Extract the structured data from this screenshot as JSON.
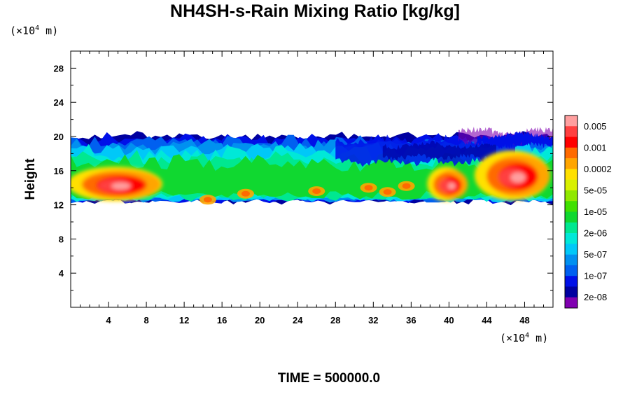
{
  "chart_data": {
    "type": "heatmap",
    "title": "NH4SH-s-Rain Mixing Ratio [kg/kg]",
    "ylabel": "Height",
    "x_unit_base": "(×10",
    "x_unit_exp": "4",
    "x_unit_tail": " m)",
    "y_unit_base": "(×10",
    "y_unit_exp": "4",
    "y_unit_tail": " m)",
    "xlim": [
      0,
      51
    ],
    "ylim": [
      0,
      30
    ],
    "x_ticks": [
      "4",
      "8",
      "12",
      "16",
      "20",
      "24",
      "28",
      "32",
      "36",
      "40",
      "44",
      "48"
    ],
    "x_tick_values": [
      4,
      8,
      12,
      16,
      20,
      24,
      28,
      32,
      36,
      40,
      44,
      48
    ],
    "y_ticks": [
      "4",
      "8",
      "12",
      "16",
      "20",
      "24",
      "28"
    ],
    "y_tick_values": [
      4,
      8,
      12,
      16,
      20,
      24,
      28
    ],
    "colorbar": {
      "labels": [
        "0.005",
        "0.001",
        "0.0002",
        "5e-05",
        "1e-05",
        "2e-06",
        "5e-07",
        "1e-07",
        "2e-08"
      ],
      "colors": [
        "#ff9f9f",
        "#ff4040",
        "#ff0000",
        "#ff6a00",
        "#ffa500",
        "#ffe000",
        "#d8f000",
        "#90e800",
        "#40e000",
        "#10d830",
        "#00e890",
        "#00e8d8",
        "#00c8f8",
        "#0090f0",
        "#0060f0",
        "#0010e8",
        "#0000a0",
        "#8000b0"
      ]
    },
    "band": {
      "bottom_km_x10": 12.5,
      "top_km_x10": 20.0,
      "intense_regions": [
        {
          "x": [
            0,
            10
          ],
          "y": [
            12.5,
            17
          ]
        },
        {
          "x": [
            38,
            42
          ],
          "y": [
            12.5,
            17
          ]
        },
        {
          "x": [
            43,
            51
          ],
          "y": [
            12.5,
            19
          ]
        }
      ]
    }
  },
  "footer": {
    "time": "TIME = 500000.0"
  }
}
